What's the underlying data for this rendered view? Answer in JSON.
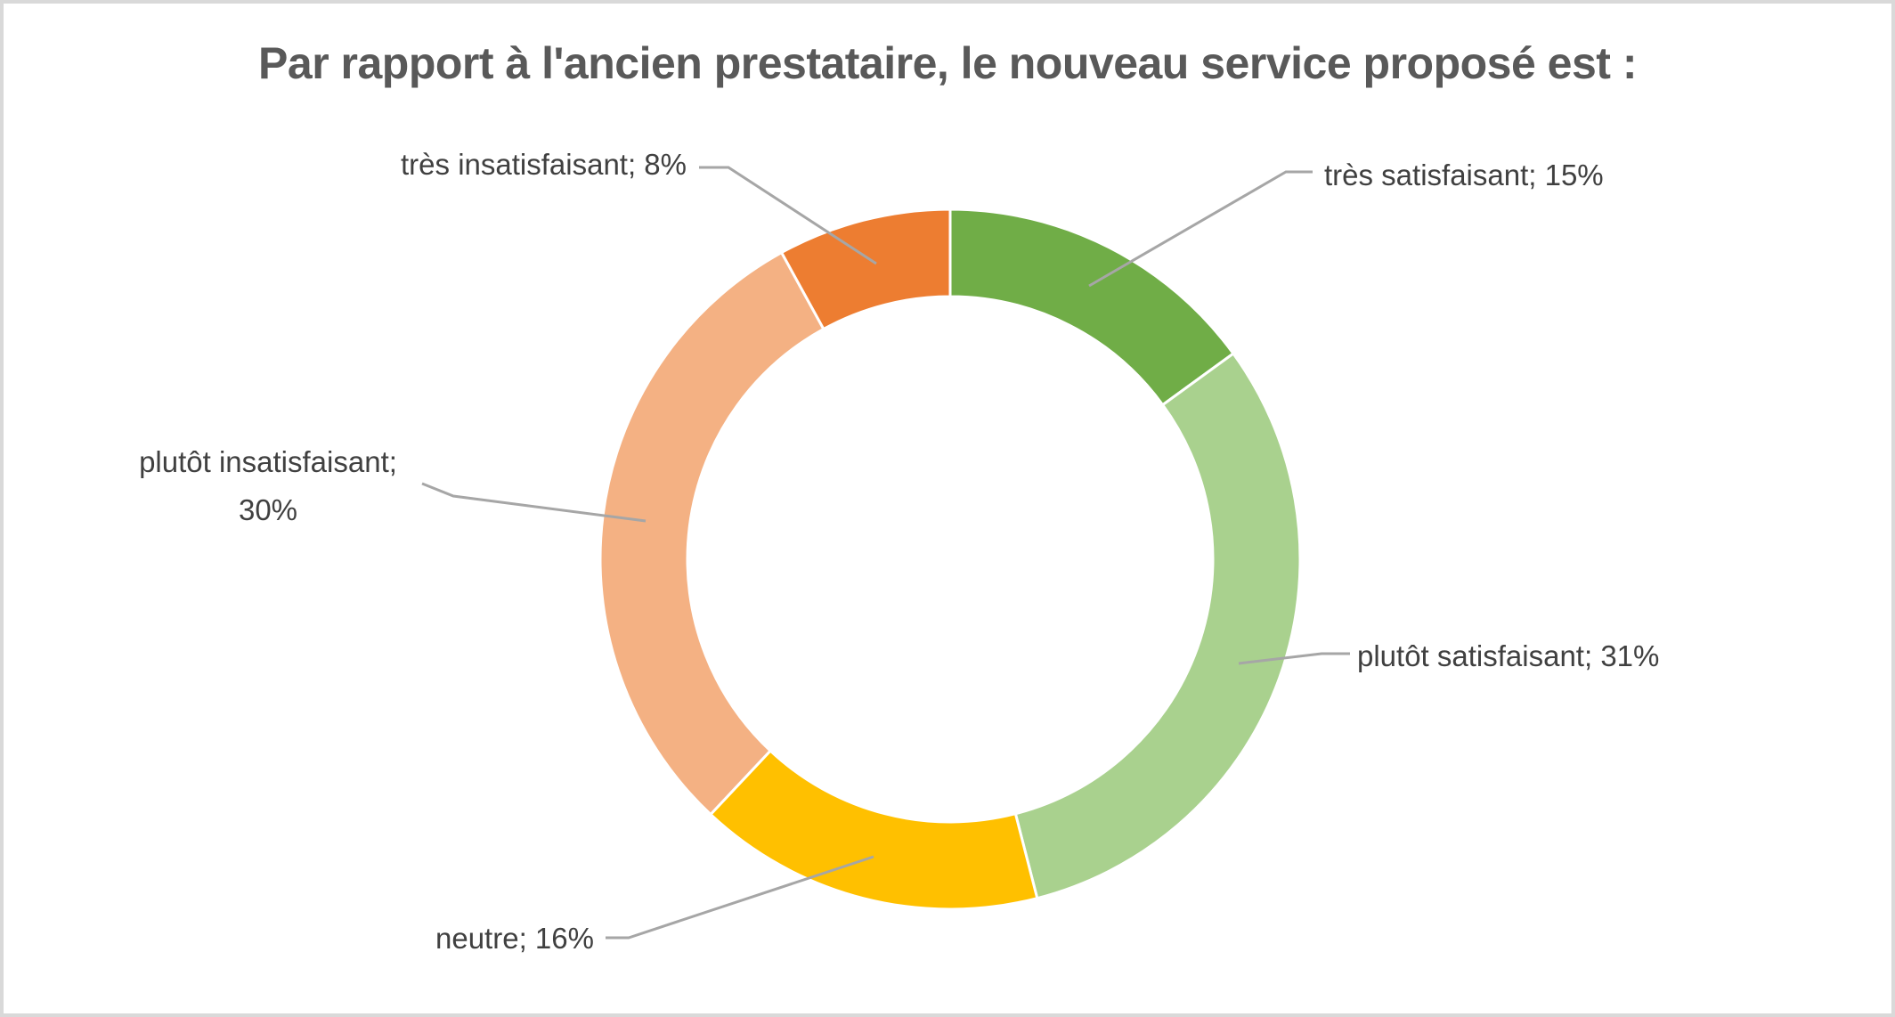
{
  "chart_data": {
    "type": "pie",
    "subtype": "donut",
    "title": "Par rapport à l'ancien prestataire, le nouveau service proposé est :",
    "categories": [
      "très satisfaisant",
      "plutôt satisfaisant",
      "neutre",
      "plutôt insatisfaisant",
      "très insatisfaisant"
    ],
    "values": [
      15,
      31,
      16,
      30,
      8
    ],
    "unit": "%",
    "colors": [
      "#70AD47",
      "#A9D18E",
      "#FFC000",
      "#F4B183",
      "#ED7D31"
    ],
    "labels_text": {
      "tres_satisfaisant": "très satisfaisant; 15%",
      "plutot_satisfaisant": "plutôt satisfaisant; 31%",
      "neutre": "neutre; 16%",
      "plutot_insatisfaisant": "plutôt insatisfaisant;\n30%",
      "tres_insatisfaisant": "très insatisfaisant; 8%"
    },
    "start_angle_deg": 0,
    "direction": "clockwise",
    "hole_ratio": 0.75,
    "legend_position": "none",
    "grid": false,
    "background_color": "#FFFFFF",
    "frame_border_color": "#D9D9D9",
    "slice_border_color": "#FFFFFF",
    "leader_line_color": "#A6A6A6",
    "title_color": "#595959",
    "label_color": "#404040"
  }
}
